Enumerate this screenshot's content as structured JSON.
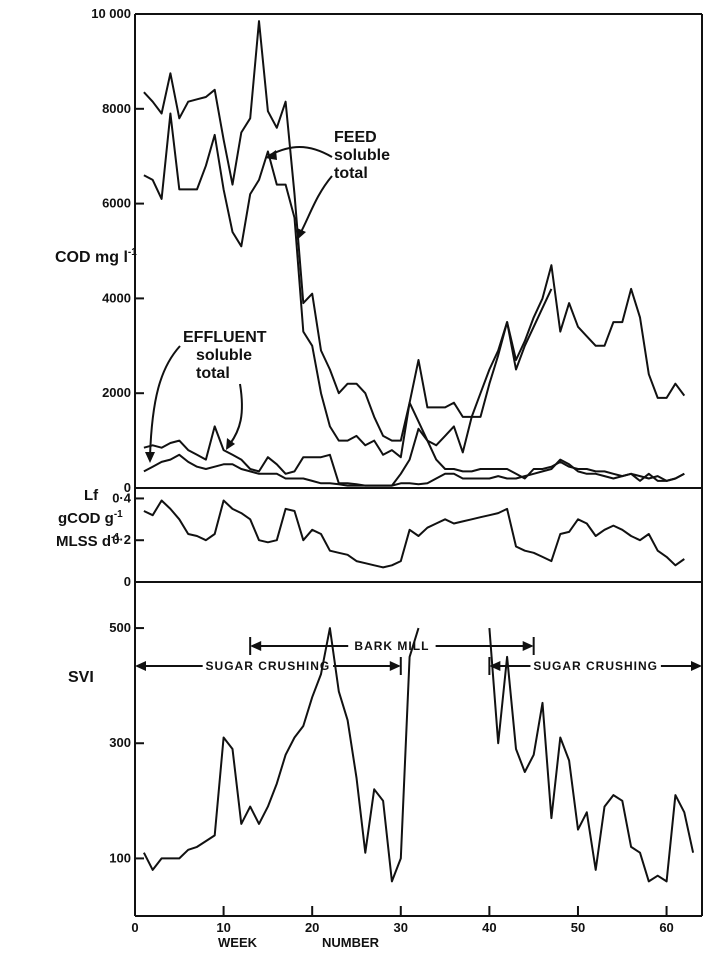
{
  "chart_data": {
    "type": "line",
    "x_axis": {
      "label_left": "WEEK",
      "label_right": "NUMBER",
      "range": [
        0,
        64
      ],
      "ticks": [
        0,
        10,
        20,
        30,
        40,
        50,
        60
      ],
      "tick_labels": [
        "0",
        "10",
        "20",
        "30",
        "40",
        "50",
        "60"
      ]
    },
    "panels": [
      {
        "id": "cod",
        "ylabel": "COD mg l",
        "ylabel_sup": "-1",
        "ylim": [
          0,
          10000
        ],
        "ticks": [
          0,
          2000,
          4000,
          6000,
          8000,
          10000
        ],
        "tick_labels": [
          "0",
          "2000",
          "4000",
          "6000",
          "8000",
          "10 000"
        ],
        "annotations": {
          "feed": [
            "FEED",
            "soluble",
            "total"
          ],
          "effluent": [
            "EFFLUENT",
            "soluble",
            "total"
          ]
        },
        "series": [
          {
            "id": "feed_total",
            "x": [
              1,
              2,
              3,
              4,
              5,
              6,
              7,
              8,
              9,
              10,
              11,
              12,
              13,
              14,
              15,
              16,
              17,
              18,
              19,
              20,
              21,
              22,
              23,
              24,
              25,
              26,
              27,
              28,
              29,
              30,
              31,
              32,
              33,
              34,
              35,
              36,
              37,
              38,
              39,
              40,
              41,
              42,
              43,
              44,
              45,
              46,
              47,
              48,
              49,
              50,
              51,
              52,
              53,
              54,
              55,
              56,
              57,
              58,
              59,
              60,
              61,
              62
            ],
            "y": [
              8350,
              8150,
              7900,
              8750,
              7800,
              8150,
              8200,
              8250,
              8400,
              7350,
              6400,
              7500,
              7800,
              9850,
              7950,
              7600,
              8150,
              6200,
              3900,
              4100,
              2900,
              2500,
              2000,
              2200,
              2200,
              2000,
              1500,
              1100,
              1000,
              1000,
              1800,
              2700,
              1700,
              1700,
              1700,
              1800,
              1500,
              1500,
              1500,
              2200,
              2800,
              3500,
              2700,
              3100,
              3600,
              4000,
              4700,
              3300,
              3900,
              3400,
              3200,
              3000,
              3000,
              3500,
              3500,
              4200,
              3600,
              2400,
              1900,
              1900,
              2200,
              1950
            ]
          },
          {
            "id": "feed_soluble",
            "x": [
              1,
              2,
              3,
              4,
              5,
              6,
              7,
              8,
              9,
              10,
              11,
              12,
              13,
              14,
              15,
              16,
              17,
              18,
              19,
              20,
              21,
              22,
              23,
              24,
              25,
              26,
              27,
              28,
              29,
              30,
              31,
              32,
              33,
              34,
              35,
              36,
              37,
              38,
              39,
              40,
              41,
              42,
              43,
              44,
              45,
              46,
              47
            ],
            "y": [
              6600,
              6500,
              6100,
              7900,
              6300,
              6300,
              6300,
              6800,
              7450,
              6300,
              5400,
              5100,
              6200,
              6500,
              7100,
              6400,
              6400,
              5700,
              3300,
              3000,
              2000,
              1300,
              1000,
              1000,
              1100,
              900,
              1000,
              700,
              800,
              650,
              1800,
              1400,
              1000,
              900,
              1100,
              1300,
              750,
              1500,
              2000,
              2500,
              2900,
              3500,
              2500,
              3000,
              3400,
              3800,
              4200
            ]
          },
          {
            "id": "effluent_total",
            "x": [
              1,
              2,
              3,
              4,
              5,
              6,
              7,
              8,
              9,
              10,
              11,
              12,
              13,
              14,
              15,
              16,
              17,
              18,
              19,
              20,
              21,
              22,
              23,
              24,
              25,
              26,
              27,
              28,
              29,
              30,
              31,
              32,
              33,
              34,
              35,
              36,
              37,
              38,
              39,
              40,
              41,
              42,
              43,
              44,
              45,
              46,
              47,
              48,
              49,
              50,
              51,
              52,
              53,
              54,
              55,
              56,
              57,
              58,
              59,
              60,
              61,
              62
            ],
            "y": [
              850,
              900,
              850,
              950,
              1000,
              800,
              700,
              600,
              1300,
              800,
              700,
              600,
              400,
              350,
              650,
              500,
              300,
              350,
              650,
              650,
              650,
              700,
              100,
              100,
              80,
              50,
              50,
              50,
              50,
              300,
              600,
              1250,
              1000,
              600,
              400,
              400,
              350,
              350,
              400,
              400,
              400,
              400,
              300,
              200,
              400,
              400,
              450,
              550,
              450,
              400,
              400,
              350,
              350,
              300,
              250,
              300,
              250,
              200,
              250,
              150,
              200,
              300
            ]
          },
          {
            "id": "effluent_soluble",
            "x": [
              1,
              2,
              3,
              4,
              5,
              6,
              7,
              8,
              9,
              10,
              11,
              12,
              13,
              14,
              15,
              16,
              17,
              18,
              19,
              20,
              21,
              22,
              23,
              24,
              25,
              26,
              27,
              28,
              29,
              30,
              31,
              32,
              33,
              34,
              35,
              36,
              37,
              38,
              39,
              40,
              41,
              42,
              43,
              44,
              45,
              46,
              47,
              48,
              49,
              50,
              51,
              52,
              53,
              54,
              55,
              56,
              57,
              58,
              59,
              60,
              61,
              62
            ],
            "y": [
              350,
              450,
              550,
              600,
              700,
              550,
              450,
              400,
              450,
              500,
              500,
              400,
              350,
              300,
              300,
              300,
              200,
              200,
              200,
              150,
              100,
              100,
              80,
              50,
              50,
              50,
              50,
              50,
              50,
              100,
              100,
              80,
              100,
              200,
              300,
              300,
              200,
              200,
              200,
              200,
              250,
              200,
              200,
              250,
              300,
              350,
              400,
              600,
              500,
              350,
              300,
              300,
              250,
              200,
              250,
              300,
              150,
              300,
              150,
              150,
              200,
              300
            ]
          }
        ]
      },
      {
        "id": "lf",
        "ylabel_lines": [
          "Lf",
          "gCOD g",
          "MLSS d"
        ],
        "ylabel_sups": [
          "",
          "-1",
          "-1"
        ],
        "ylim": [
          0,
          0.45
        ],
        "ticks": [
          0,
          0.2,
          0.4
        ],
        "tick_labels": [
          "0",
          "0·2",
          "0·4"
        ],
        "series": [
          {
            "id": "lf",
            "x": [
              1,
              2,
              3,
              4,
              5,
              6,
              7,
              8,
              9,
              10,
              11,
              12,
              13,
              14,
              15,
              16,
              17,
              18,
              19,
              20,
              21,
              22,
              23,
              24,
              25,
              26,
              27,
              28,
              29,
              30,
              31,
              32,
              33,
              34,
              35,
              36,
              37,
              38,
              39,
              40,
              41,
              42,
              43,
              44,
              45,
              46,
              47,
              48,
              49,
              50,
              51,
              52,
              53,
              54,
              55,
              56,
              57,
              58,
              59,
              60,
              61,
              62
            ],
            "y": [
              0.34,
              0.32,
              0.39,
              0.35,
              0.3,
              0.23,
              0.22,
              0.2,
              0.23,
              0.39,
              0.35,
              0.33,
              0.3,
              0.2,
              0.19,
              0.2,
              0.35,
              0.34,
              0.2,
              0.25,
              0.23,
              0.15,
              0.14,
              0.13,
              0.1,
              0.09,
              0.08,
              0.07,
              0.08,
              0.1,
              0.25,
              0.22,
              0.26,
              0.28,
              0.3,
              0.28,
              0.29,
              0.3,
              0.31,
              0.32,
              0.33,
              0.35,
              0.17,
              0.15,
              0.14,
              0.12,
              0.1,
              0.23,
              0.24,
              0.3,
              0.28,
              0.22,
              0.25,
              0.27,
              0.25,
              0.22,
              0.2,
              0.23,
              0.15,
              0.12,
              0.08,
              0.11
            ]
          }
        ]
      },
      {
        "id": "svi",
        "ylabel": "SVI",
        "ylim": [
          0,
          580
        ],
        "ticks": [
          100,
          300,
          500
        ],
        "tick_labels": [
          "100",
          "300",
          "500"
        ],
        "periods": [
          {
            "label": "SUGAR CRUSHING",
            "x0": 0,
            "x1": 30
          },
          {
            "label": "BARK MILL",
            "x0": 13,
            "x1": 45
          },
          {
            "label": "SUGAR CRUSHING",
            "x0": 40,
            "x1": 64
          }
        ],
        "series": [
          {
            "id": "svi_a",
            "x": [
              1,
              2,
              3,
              4,
              5,
              6,
              7,
              8,
              9,
              10,
              11,
              12,
              13,
              14,
              15,
              16,
              17,
              18,
              19,
              20,
              21,
              22,
              23,
              24,
              25,
              26,
              27,
              28,
              29,
              30,
              31,
              32
            ],
            "y": [
              110,
              80,
              100,
              100,
              100,
              115,
              120,
              130,
              140,
              310,
              290,
              160,
              190,
              160,
              190,
              230,
              280,
              310,
              330,
              380,
              420,
              500,
              390,
              340,
              240,
              110,
              220,
              200,
              60,
              100,
              450,
              500
            ]
          },
          {
            "id": "svi_b",
            "x": [
              40,
              41,
              42,
              43,
              44,
              45,
              46,
              47,
              48,
              49,
              50,
              51,
              52,
              53,
              54,
              55,
              56,
              57,
              58,
              59,
              60,
              61,
              62,
              63
            ],
            "y": [
              500,
              300,
              450,
              290,
              250,
              280,
              370,
              170,
              310,
              270,
              150,
              180,
              80,
              190,
              210,
              200,
              120,
              110,
              60,
              70,
              60,
              210,
              180,
              110
            ]
          }
        ]
      }
    ]
  }
}
